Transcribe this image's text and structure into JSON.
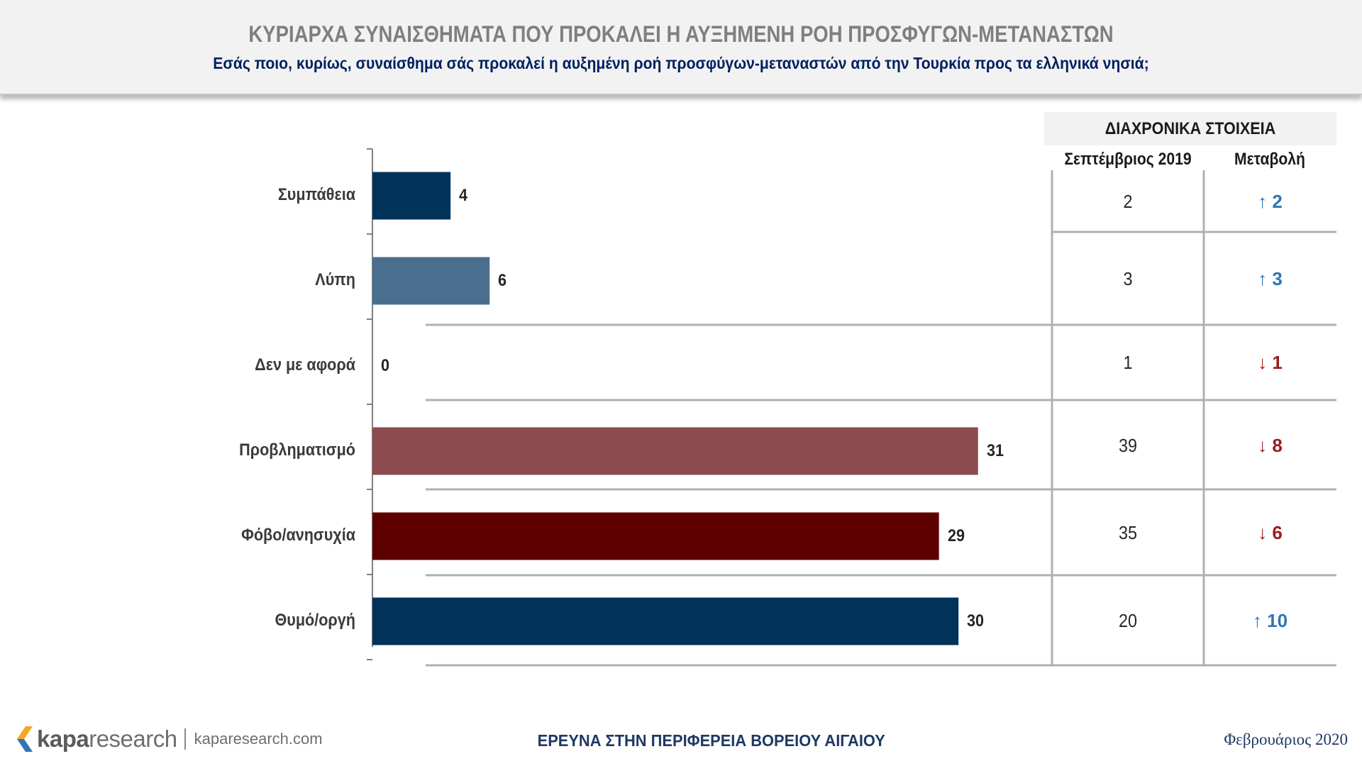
{
  "header": {
    "title": "ΚΥΡΙΑΡΧΑ ΣΥΝΑΙΣΘΗΜΑΤΑ ΠΟΥ ΠΡΟΚΑΛΕΙ Η ΑΥΞΗΜΕΝΗ ΡΟΗ ΠΡΟΣΦΥΓΩΝ-ΜΕΤΑΝΑΣΤΩΝ",
    "subtitle": "Εσάς ποιο, κυρίως, συναίσθημα σάς προκαλεί η αυξημένη ροή προσφύγων-μεταναστών από την Τουρκία προς τα ελληνικά νησιά;"
  },
  "chart_data": {
    "type": "bar",
    "orientation": "horizontal",
    "categories": [
      "Συμπάθεια",
      "Λύπη",
      "Δεν με αφορά",
      "Προβληματισμό",
      "Φόβο/ανησυχία",
      "Θυμό/οργή"
    ],
    "values": [
      4,
      6,
      0,
      31,
      29,
      30
    ],
    "value_labels": [
      "4",
      "6",
      "0",
      "31",
      "29",
      "30"
    ],
    "colors": [
      "#00325a",
      "#4a6e8e",
      "#4a6e8e",
      "#8b4a4d",
      "#5e0000",
      "#00325a"
    ],
    "xlim": [
      0,
      35
    ],
    "grid": false,
    "legend": "none"
  },
  "history": {
    "title": "ΔΙΑΧΡΟΝΙΚΑ ΣΤΟΙΧΕΙΑ",
    "col_period": "Σεπτέμβριος 2019",
    "col_change": "Μεταβολή",
    "rows": [
      {
        "prev": "2",
        "dir": "up",
        "change": "2"
      },
      {
        "prev": "3",
        "dir": "up",
        "change": "3"
      },
      {
        "prev": "1",
        "dir": "down",
        "change": "1"
      },
      {
        "prev": "39",
        "dir": "down",
        "change": "8"
      },
      {
        "prev": "35",
        "dir": "down",
        "change": "6"
      },
      {
        "prev": "20",
        "dir": "up",
        "change": "10"
      }
    ],
    "up_color": "#2e75b6",
    "down_color": "#9c1c1c",
    "up_arrow": "↑",
    "down_arrow": "↓"
  },
  "footer": {
    "logo_bold": "kapa",
    "logo_rest": "research",
    "url": "kaparesearch.com",
    "center": "ΕΡΕΥΝΑ ΣΤΗΝ ΠΕΡΙΦΕΡΕΙΑ ΒΟΡΕΙΟΥ ΑΙΓΑΙΟΥ",
    "date": "Φεβρουάριος 2020"
  }
}
